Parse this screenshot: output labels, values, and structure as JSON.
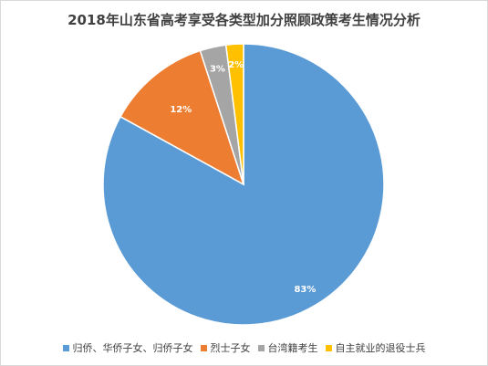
{
  "chart_data": {
    "type": "pie",
    "title": "2018年山东省高考享受各类型加分照顾政策考生情况分析",
    "categories": [
      "归侨、华侨子女、归侨子女",
      "烈士子女",
      "台湾籍考生",
      "自主就业的退役士兵"
    ],
    "values": [
      83,
      12,
      3,
      2
    ],
    "labels": [
      "83%",
      "12%",
      "3%",
      "2%"
    ],
    "unit": "%",
    "colors": [
      "#5B9BD5",
      "#ED7D31",
      "#A5A5A5",
      "#FFC000"
    ],
    "legend_position": "bottom"
  }
}
